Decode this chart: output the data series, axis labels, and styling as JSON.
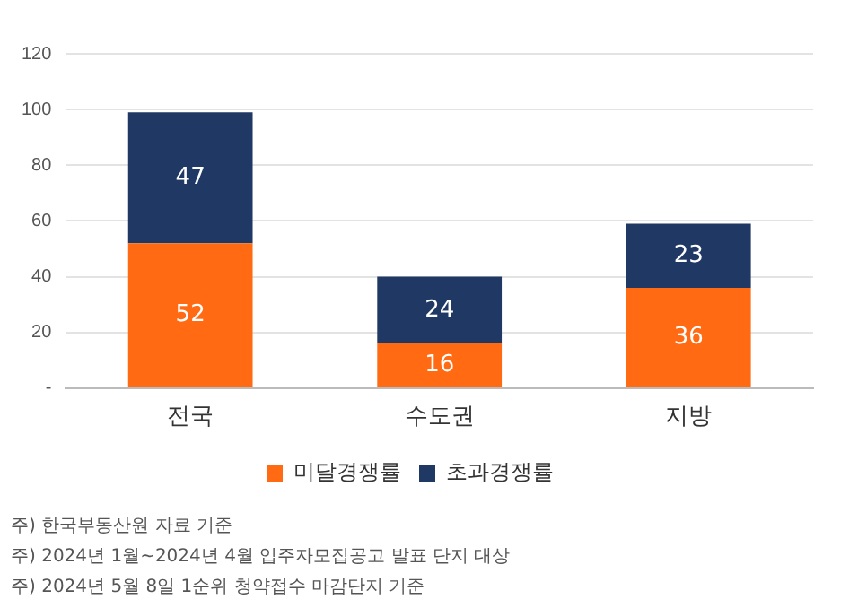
{
  "chart_data": {
    "type": "bar",
    "stacked": true,
    "categories": [
      "전국",
      "수도권",
      "지방"
    ],
    "series": [
      {
        "name": "미달경쟁률",
        "color": "#ff6a13",
        "values": [
          52,
          16,
          36
        ]
      },
      {
        "name": "초과경쟁률",
        "color": "#1f3864",
        "values": [
          47,
          24,
          23
        ]
      }
    ],
    "ylim": [
      0,
      120
    ],
    "yticks": [
      {
        "value": 0,
        "label": "-"
      },
      20,
      40,
      60,
      80,
      100,
      120
    ],
    "grid": "y",
    "legend": "bottom",
    "data_labels": true,
    "annotations": [
      "주) 한국부동산원 자료 기준",
      "주) 2024년 1월~2024년 4월 입주자모집공고 발표 단지 대상",
      "주) 2024년 5월 8일 1순위 청약접수 마감단지 기준"
    ]
  }
}
